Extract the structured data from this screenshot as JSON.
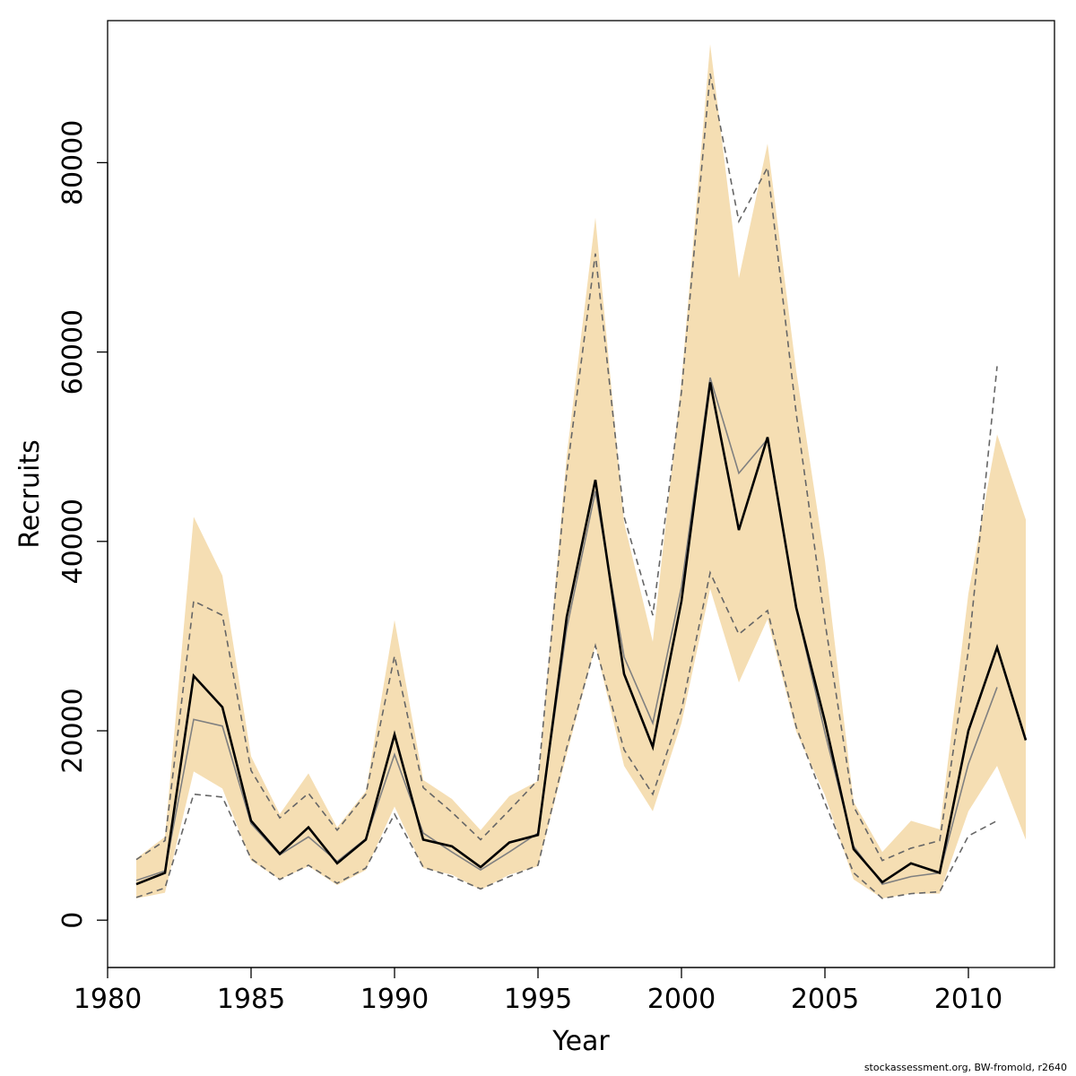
{
  "chart_data": {
    "type": "line",
    "xlabel": "Year",
    "ylabel": "Recruits",
    "xlim": [
      1980,
      2013
    ],
    "ylim": [
      -5000,
      95000
    ],
    "x_ticks": [
      1980,
      1985,
      1990,
      1995,
      2000,
      2005,
      2010
    ],
    "y_ticks": [
      0,
      20000,
      40000,
      60000,
      80000
    ],
    "grid": false,
    "legend": "none",
    "colors": {
      "band": "#f5deb3",
      "main_line": "#000000",
      "ref_line": "#808080",
      "ref_dashed": "#666666",
      "axis": "#000000"
    },
    "x": [
      1981,
      1982,
      1983,
      1984,
      1985,
      1986,
      1987,
      1988,
      1989,
      1990,
      1991,
      1992,
      1993,
      1994,
      1995,
      1996,
      1997,
      1998,
      1999,
      2000,
      2001,
      2002,
      2003,
      2004,
      2005,
      2006,
      2007,
      2008,
      2009,
      2010,
      2011,
      2012
    ],
    "series": [
      {
        "role": "interval",
        "upper": [
          6500,
          8800,
          42600,
          36400,
          17300,
          11200,
          15500,
          9800,
          13600,
          31700,
          14800,
          12800,
          9500,
          13100,
          14700,
          49000,
          74200,
          42000,
          29400,
          57000,
          92500,
          67800,
          82000,
          58000,
          38000,
          12500,
          7200,
          10500,
          9600,
          34500,
          51300,
          42300
        ],
        "lower": [
          2300,
          2900,
          15700,
          13900,
          6300,
          4300,
          5700,
          3700,
          5300,
          12000,
          5500,
          4800,
          3200,
          4800,
          5700,
          17500,
          29000,
          16300,
          11500,
          20800,
          35000,
          25100,
          31800,
          19900,
          13200,
          4300,
          2300,
          2800,
          2800,
          11500,
          16300,
          8500
        ]
      },
      {
        "role": "main",
        "values": [
          3800,
          5000,
          25800,
          22500,
          10500,
          7000,
          9800,
          6000,
          8500,
          19600,
          8500,
          7800,
          5600,
          8200,
          9000,
          32000,
          46500,
          26000,
          18300,
          33700,
          56800,
          41200,
          51000,
          33000,
          21000,
          7500,
          4000,
          6000,
          5000,
          20000,
          28800,
          19000
        ]
      },
      {
        "role": "reference",
        "x": [
          1981,
          1982,
          1983,
          1984,
          1985,
          1986,
          1987,
          1988,
          1989,
          1990,
          1991,
          1992,
          1993,
          1994,
          1995,
          1996,
          1997,
          1998,
          1999,
          2000,
          2001,
          2002,
          2003,
          2004,
          2005,
          2006,
          2007,
          2008,
          2009,
          2010,
          2011
        ],
        "values": [
          4200,
          5200,
          21200,
          20500,
          10200,
          6900,
          8800,
          6200,
          8600,
          17500,
          9200,
          7200,
          5300,
          7200,
          9200,
          30800,
          45300,
          27800,
          20800,
          35200,
          57300,
          47200,
          50800,
          33000,
          19800,
          7800,
          3800,
          4600,
          5000,
          16500,
          24600
        ]
      },
      {
        "role": "reference-upper",
        "x": [
          1981,
          1982,
          1983,
          1984,
          1985,
          1986,
          1987,
          1988,
          1989,
          1990,
          1991,
          1992,
          1993,
          1994,
          1995,
          1996,
          1997,
          1998,
          1999,
          2000,
          2001,
          2002,
          2003,
          2004,
          2005,
          2006,
          2007,
          2008,
          2009,
          2010,
          2011
        ],
        "values": [
          6400,
          8400,
          33700,
          32200,
          15800,
          10800,
          13400,
          9500,
          13300,
          27900,
          14000,
          11400,
          8500,
          11600,
          14800,
          47200,
          70400,
          42600,
          32200,
          55800,
          89400,
          73800,
          79500,
          53500,
          31500,
          12000,
          6300,
          7600,
          8400,
          28500,
          58500
        ]
      },
      {
        "role": "reference-lower",
        "x": [
          1981,
          1982,
          1983,
          1984,
          1985,
          1986,
          1987,
          1988,
          1989,
          1990,
          1991,
          1992,
          1993,
          1994,
          1995,
          1996,
          1997,
          1998,
          1999,
          2000,
          2001,
          2002,
          2003,
          2004,
          2005,
          2006,
          2007,
          2008,
          2009,
          2010,
          2011
        ],
        "values": [
          2400,
          3400,
          13300,
          13000,
          6500,
          4300,
          5800,
          3900,
          5500,
          11200,
          5600,
          4600,
          3300,
          4600,
          5800,
          18200,
          29000,
          18000,
          13300,
          22200,
          36700,
          30200,
          32700,
          20400,
          12400,
          5000,
          2300,
          2800,
          3000,
          8900,
          10500
        ]
      }
    ]
  },
  "footer": {
    "credit": "stockassessment.org, BW-fromold, r2640"
  }
}
